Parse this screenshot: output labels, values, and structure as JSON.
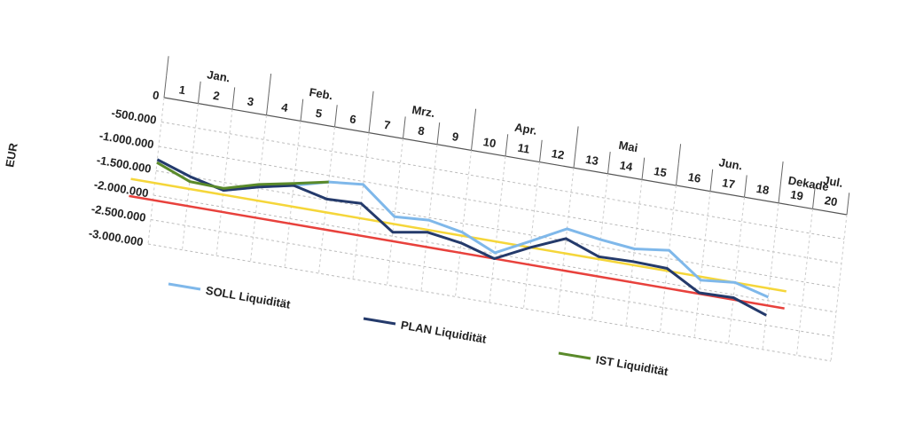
{
  "chart_data": {
    "type": "line",
    "x_title": "Dekade",
    "y_title": "EUR",
    "x": [
      0,
      1,
      2,
      3,
      4,
      5,
      6,
      7,
      8,
      9,
      10,
      11,
      12,
      13,
      14,
      15,
      16,
      17,
      18
    ],
    "xlim": [
      0,
      20
    ],
    "xticks": [
      {
        "value": 0.5,
        "label": "1"
      },
      {
        "value": 1.5,
        "label": "2"
      },
      {
        "value": 2.5,
        "label": "3"
      },
      {
        "value": 3.5,
        "label": "4"
      },
      {
        "value": 4.5,
        "label": "5"
      },
      {
        "value": 5.5,
        "label": "6"
      },
      {
        "value": 6.5,
        "label": "7"
      },
      {
        "value": 7.5,
        "label": "8"
      },
      {
        "value": 8.5,
        "label": "9"
      },
      {
        "value": 9.5,
        "label": "10"
      },
      {
        "value": 10.5,
        "label": "11"
      },
      {
        "value": 11.5,
        "label": "12"
      },
      {
        "value": 12.5,
        "label": "13"
      },
      {
        "value": 13.5,
        "label": "14"
      },
      {
        "value": 14.5,
        "label": "15"
      },
      {
        "value": 15.5,
        "label": "16"
      },
      {
        "value": 16.5,
        "label": "17"
      },
      {
        "value": 17.5,
        "label": "18"
      },
      {
        "value": 18.5,
        "label": "19"
      },
      {
        "value": 19.5,
        "label": "20"
      }
    ],
    "month_ticks": [
      {
        "value": 1.5,
        "label": "Jan."
      },
      {
        "value": 4.5,
        "label": "Feb."
      },
      {
        "value": 7.5,
        "label": "Mrz."
      },
      {
        "value": 10.5,
        "label": "Apr."
      },
      {
        "value": 13.5,
        "label": "Mai"
      },
      {
        "value": 16.5,
        "label": "Jun."
      },
      {
        "value": 19.5,
        "label": "Jul."
      }
    ],
    "ylim": [
      -3000000,
      0
    ],
    "yticks": [
      0,
      {
        "value": -500000,
        "label": "-500.000"
      },
      {
        "value": -1000000,
        "label": "-1.000.000"
      },
      {
        "value": -1500000,
        "label": "-1.500.000"
      },
      {
        "value": -2000000,
        "label": "-2.000.000"
      },
      {
        "value": -2500000,
        "label": "-2.500.000"
      },
      {
        "value": -3000000,
        "label": "-3.000.000"
      }
    ],
    "grid": true,
    "series": [
      {
        "name": "SOLL Liquidität",
        "color": "#7fb8ea",
        "values": [
          -1270000,
          -1500000,
          -1660000,
          -1470000,
          -1320000,
          -1130000,
          -1060000,
          -1600000,
          -1550000,
          -1680000,
          -1980000,
          -1620000,
          -1250000,
          -1350000,
          -1420000,
          -1330000,
          -1820000,
          -1750000,
          -1930000
        ]
      },
      {
        "name": "PLAN Liquidität",
        "color": "#243a6b",
        "values": [
          -1270000,
          -1500000,
          -1660000,
          -1470000,
          -1320000,
          -1480000,
          -1450000,
          -1920000,
          -1800000,
          -1900000,
          -2100000,
          -1750000,
          -1450000,
          -1700000,
          -1680000,
          -1700000,
          -2080000,
          -2060000,
          -2300000
        ]
      },
      {
        "name": "IST Liquidität",
        "color": "#5a8a2a",
        "values": [
          -1330000,
          -1600000,
          -1620000,
          -1420000,
          -1280000,
          -1130000,
          null,
          null,
          null,
          null,
          null,
          null,
          null,
          null,
          null,
          null,
          null,
          null,
          null
        ]
      }
    ],
    "reference_lines": [
      {
        "color": "#f5d63a",
        "value": -1750000
      },
      {
        "color": "#e8413c",
        "value": -2100000
      }
    ]
  }
}
